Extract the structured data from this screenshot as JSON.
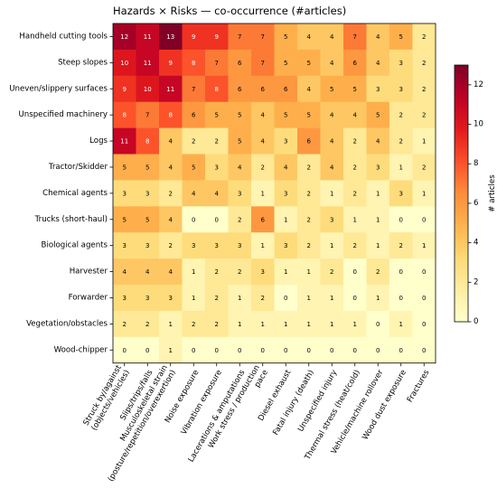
{
  "chart_data": {
    "type": "heatmap",
    "title": "Hazards × Risks — co-occurrence (#articles)",
    "rows": [
      "Handheld cutting tools",
      "Steep slopes",
      "Uneven/slippery surfaces",
      "Unspecified machinery",
      "Logs",
      "Tractor/Skidder",
      "Chemical agents",
      "Trucks (short-haul)",
      "Biological agents",
      "Harvester",
      "Forwarder",
      "Vegetation/obstacles",
      "Wood-chipper"
    ],
    "columns": [
      [
        "Struck by/against",
        "(objects/vehicles)"
      ],
      [
        "Slips/trips/falls"
      ],
      [
        "Musculoskeletal strain",
        "(posture/repetition/overexertion)"
      ],
      [
        "Noise exposure"
      ],
      [
        "Vibration exposure"
      ],
      [
        "Lacerations & amputations"
      ],
      [
        "Work stress / production",
        "pace"
      ],
      [
        "Diesel exhaust"
      ],
      [
        "Fatal injury (death)"
      ],
      [
        "Unspecified injury"
      ],
      [
        "Thermal stress (heat/cold)"
      ],
      [
        "Vehicle/machine rollover"
      ],
      [
        "Wood dust exposure"
      ],
      [
        "Fractures"
      ]
    ],
    "values": [
      [
        12,
        11,
        13,
        9,
        9,
        7,
        7,
        5,
        4,
        4,
        7,
        4,
        5,
        2
      ],
      [
        10,
        11,
        9,
        8,
        7,
        6,
        7,
        5,
        5,
        4,
        6,
        4,
        3,
        2
      ],
      [
        9,
        10,
        11,
        7,
        8,
        6,
        6,
        6,
        4,
        5,
        5,
        3,
        3,
        2
      ],
      [
        8,
        7,
        8,
        6,
        5,
        5,
        4,
        5,
        5,
        4,
        4,
        5,
        2,
        2
      ],
      [
        11,
        8,
        4,
        2,
        2,
        5,
        4,
        3,
        6,
        4,
        2,
        4,
        2,
        1
      ],
      [
        5,
        5,
        4,
        5,
        3,
        4,
        2,
        4,
        2,
        4,
        2,
        3,
        1,
        2
      ],
      [
        3,
        3,
        2,
        4,
        4,
        3,
        1,
        3,
        2,
        1,
        2,
        1,
        3,
        1
      ],
      [
        5,
        5,
        4,
        0,
        0,
        2,
        6,
        1,
        2,
        3,
        1,
        1,
        0,
        0
      ],
      [
        3,
        3,
        2,
        3,
        3,
        3,
        1,
        3,
        2,
        1,
        2,
        1,
        2,
        1
      ],
      [
        4,
        4,
        4,
        1,
        2,
        2,
        3,
        1,
        1,
        2,
        0,
        2,
        0,
        0
      ],
      [
        3,
        3,
        3,
        1,
        2,
        1,
        2,
        0,
        1,
        1,
        0,
        1,
        0,
        0
      ],
      [
        2,
        2,
        1,
        2,
        2,
        1,
        1,
        1,
        1,
        1,
        1,
        0,
        1,
        0
      ],
      [
        0,
        0,
        1,
        0,
        0,
        0,
        0,
        0,
        0,
        0,
        0,
        0,
        0,
        0
      ]
    ],
    "colorbar": {
      "label": "# articles",
      "range": [
        0,
        13
      ],
      "ticks": [
        0,
        2,
        4,
        6,
        8,
        10,
        12
      ],
      "colormap": "YlOrRd"
    }
  }
}
